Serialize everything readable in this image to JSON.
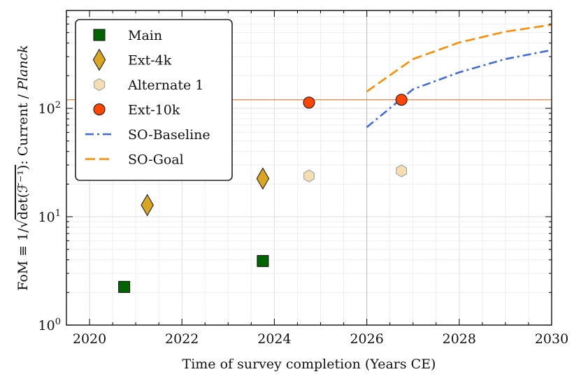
{
  "chart_data": {
    "type": "scatter",
    "title": "",
    "xlabel": "Time of survey completion (Years CE)",
    "ylabel": "FoM ≡ 1/√det(ℱ⁻¹): Current / Planck",
    "ylabel_parts": {
      "prefix": "FoM ≡ 1/",
      "root_symbol": "√",
      "radicand": "det(ℱ⁻¹)",
      "middle": ": Current / ",
      "italic_tail": "Planck"
    },
    "x_scale": "linear",
    "y_scale": "log",
    "xlim": [
      2019.5,
      2030
    ],
    "ylim": [
      1,
      800
    ],
    "x_ticks": [
      2020,
      2022,
      2024,
      2026,
      2028,
      2030
    ],
    "x_tick_labels": [
      "2020",
      "2022",
      "2024",
      "2026",
      "2028",
      "2030"
    ],
    "y_ticks": [
      1,
      10,
      100
    ],
    "y_tick_labels": [
      {
        "base": "10",
        "exp": "0"
      },
      {
        "base": "10",
        "exp": "1"
      },
      {
        "base": "10",
        "exp": "2"
      }
    ],
    "grid": true,
    "legend_position": "top-left",
    "reference_line": {
      "y": 120,
      "color": "#ee7733"
    },
    "reference_vline": {
      "x": 2026,
      "color": "#bbbbbb"
    },
    "series": [
      {
        "name": "Main",
        "kind": "marker",
        "marker": "square",
        "color": "#006400",
        "edge": "#111111",
        "points": [
          [
            2020.75,
            2.25
          ],
          [
            2023.75,
            3.9
          ]
        ]
      },
      {
        "name": "Ext-4k",
        "kind": "marker",
        "marker": "diamond",
        "color": "#DAA520",
        "edge": "#111111",
        "points": [
          [
            2021.25,
            12.8
          ],
          [
            2023.75,
            22.5
          ]
        ]
      },
      {
        "name": "Alternate 1",
        "kind": "marker",
        "marker": "hexagon",
        "color": "#F5DEB3",
        "edge": "#999999",
        "points": [
          [
            2024.75,
            23.8
          ],
          [
            2026.75,
            26.5
          ]
        ]
      },
      {
        "name": "Ext-10k",
        "kind": "marker",
        "marker": "circle",
        "color": "#FF4500",
        "edge": "#111111",
        "points": [
          [
            2024.75,
            113
          ],
          [
            2026.75,
            120
          ]
        ]
      },
      {
        "name": "SO-Baseline",
        "kind": "line",
        "dash": "dashdot",
        "color": "#4169E1",
        "points": [
          [
            2026,
            67
          ],
          [
            2027,
            150
          ],
          [
            2028,
            215
          ],
          [
            2029,
            285
          ],
          [
            2030,
            345
          ]
        ]
      },
      {
        "name": "SO-Goal",
        "kind": "line",
        "dash": "dashed",
        "color": "#FF8C00",
        "points": [
          [
            2026,
            143
          ],
          [
            2027,
            285
          ],
          [
            2028,
            405
          ],
          [
            2029,
            510
          ],
          [
            2030,
            590
          ]
        ]
      }
    ]
  }
}
